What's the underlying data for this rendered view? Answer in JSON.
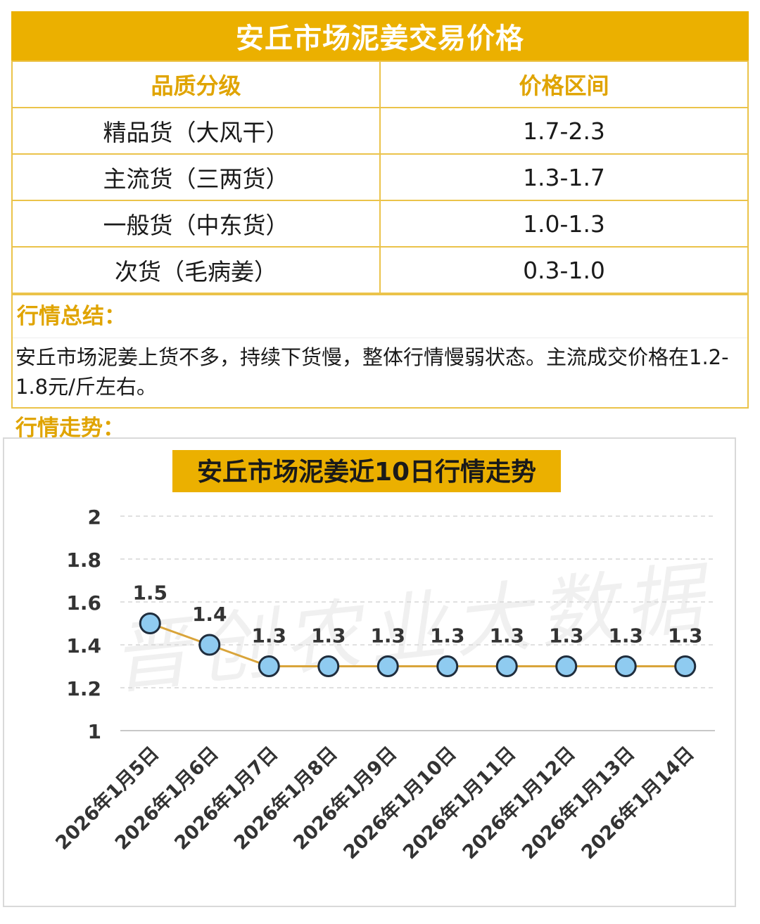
{
  "header": {
    "title": "安丘市场泥姜交易价格"
  },
  "table": {
    "columns": [
      "品质分级",
      "价格区间"
    ],
    "rows": [
      {
        "grade": "精品货（大风干）",
        "price": "1.7-2.3"
      },
      {
        "grade": "主流货（三两货）",
        "price": "1.3-1.7"
      },
      {
        "grade": "一般货（中东货）",
        "price": "1.0-1.3"
      },
      {
        "grade": "次货（毛病姜）",
        "price": "0.3-1.0"
      }
    ]
  },
  "summary": {
    "label": "行情总结：",
    "text": "安丘市场泥姜上货不多，持续下货慢，整体行情慢弱状态。主流成交价格在1.2-1.8元/斤左右。"
  },
  "trend": {
    "label": "行情走势："
  },
  "watermark": "晋创农业大数据",
  "colors": {
    "accent": "#ebb000",
    "line": "#d9a43a",
    "marker_fill": "#8fcbf0",
    "marker_stroke": "#1f2d3d",
    "table_border": "#ebc34a"
  },
  "chart_data": {
    "type": "line",
    "title": "安丘市场泥姜近10日行情走势",
    "categories": [
      "2026年1月5日",
      "2026年1月6日",
      "2026年1月7日",
      "2026年1月8日",
      "2026年1月9日",
      "2026年1月10日",
      "2026年1月11日",
      "2026年1月12日",
      "2026年1月13日",
      "2026年1月14日"
    ],
    "series": [
      {
        "values": [
          1.5,
          1.4,
          1.3,
          1.3,
          1.3,
          1.3,
          1.3,
          1.3,
          1.3,
          1.3
        ]
      }
    ],
    "data_labels": [
      "1.5",
      "1.4",
      "1.3",
      "1.3",
      "1.3",
      "1.3",
      "1.3",
      "1.3",
      "1.3",
      "1.3"
    ],
    "yticks": [
      "1",
      "1.2",
      "1.4",
      "1.6",
      "1.8",
      "2"
    ],
    "ylim": [
      1,
      2
    ],
    "grid": true,
    "legend": "none"
  }
}
